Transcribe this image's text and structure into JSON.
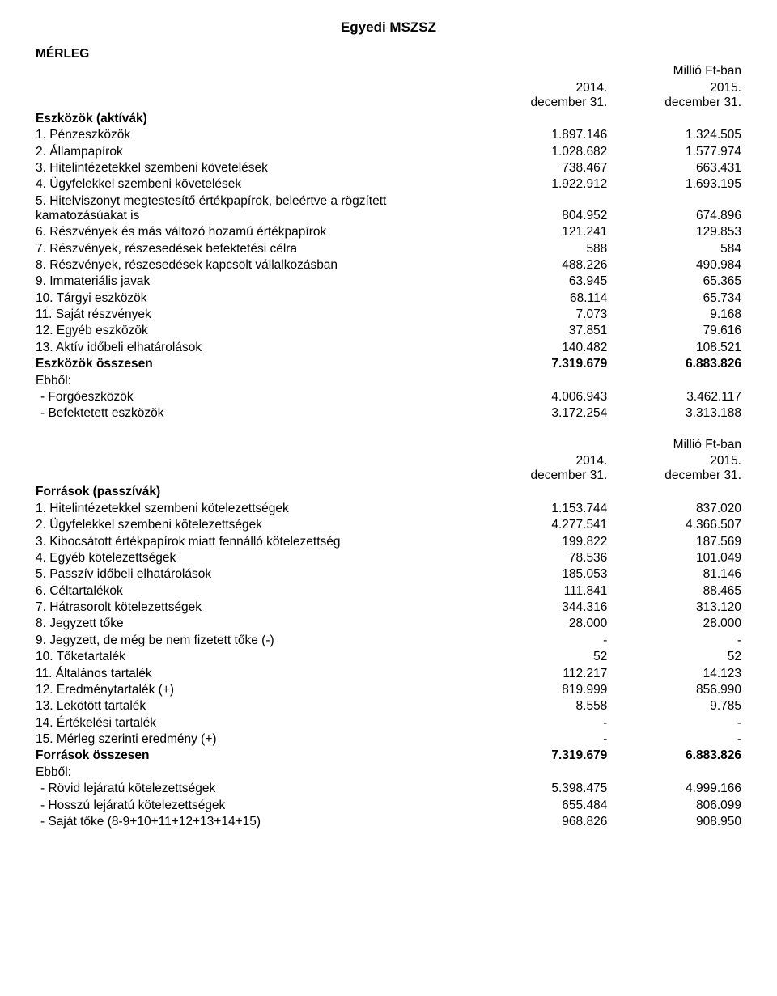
{
  "typography": {
    "font_family": "Arial, Helvetica, sans-serif",
    "base_size_pt": 11.5,
    "title_size_pt": 13,
    "color": "#000000",
    "background": "#ffffff"
  },
  "doc_title": "Egyedi MSZSZ",
  "unit_label": "Millió Ft-ban",
  "columns": {
    "col1": {
      "year": "2014.",
      "date": "december 31."
    },
    "col2": {
      "year": "2015.",
      "date": "december 31."
    }
  },
  "section1": {
    "heading": "MÉRLEG",
    "group_label": "Eszközök (aktívák)",
    "rows": [
      {
        "label": "1. Pénzeszközök",
        "v1": "1.897.146",
        "v2": "1.324.505"
      },
      {
        "label": "2. Állampapírok",
        "v1": "1.028.682",
        "v2": "1.577.974"
      },
      {
        "label": "3. Hitelintézetekkel szembeni követelések",
        "v1": "738.467",
        "v2": "663.431"
      },
      {
        "label": "4. Ügyfelekkel szembeni követelések",
        "v1": "1.922.912",
        "v2": "1.693.195"
      },
      {
        "label": "5. Hitelviszonyt megtestesítő értékpapírok, beleértve a rögzített kamatozásúakat is",
        "v1": "804.952",
        "v2": "674.896"
      },
      {
        "label": "6. Részvények és más változó hozamú értékpapírok",
        "v1": "121.241",
        "v2": "129.853"
      },
      {
        "label": "7. Részvények, részesedések befektetési célra",
        "v1": "588",
        "v2": "584"
      },
      {
        "label": "8. Részvények, részesedések kapcsolt vállalkozásban",
        "v1": "488.226",
        "v2": "490.984"
      },
      {
        "label": "9. Immateriális javak",
        "v1": "63.945",
        "v2": "65.365"
      },
      {
        "label": "10. Tárgyi eszközök",
        "v1": "68.114",
        "v2": "65.734"
      },
      {
        "label": "11. Saját részvények",
        "v1": "7.073",
        "v2": "9.168"
      },
      {
        "label": "12. Egyéb eszközök",
        "v1": "37.851",
        "v2": "79.616"
      },
      {
        "label": "13. Aktív időbeli elhatárolások",
        "v1": "140.482",
        "v2": "108.521"
      }
    ],
    "total": {
      "label": "Eszközök összesen",
      "v1": "7.319.679",
      "v2": "6.883.826"
    },
    "ebbol_label": "Ebből:",
    "sub": [
      {
        "label": "- Forgóeszközök",
        "v1": "4.006.943",
        "v2": "3.462.117"
      },
      {
        "label": "- Befektetett eszközök",
        "v1": "3.172.254",
        "v2": "3.313.188"
      }
    ]
  },
  "section2": {
    "group_label": "Források (passzívák)",
    "rows": [
      {
        "label": "1. Hitelintézetekkel szembeni kötelezettségek",
        "v1": "1.153.744",
        "v2": "837.020"
      },
      {
        "label": "2. Ügyfelekkel szembeni kötelezettségek",
        "v1": "4.277.541",
        "v2": "4.366.507"
      },
      {
        "label": "3. Kibocsátott értékpapírok miatt fennálló kötelezettség",
        "v1": "199.822",
        "v2": "187.569"
      },
      {
        "label": "4. Egyéb kötelezettségek",
        "v1": "78.536",
        "v2": "101.049"
      },
      {
        "label": "5. Passzív időbeli elhatárolások",
        "v1": "185.053",
        "v2": "81.146"
      },
      {
        "label": "6. Céltartalékok",
        "v1": "111.841",
        "v2": "88.465"
      },
      {
        "label": "7. Hátrasorolt kötelezettségek",
        "v1": "344.316",
        "v2": "313.120"
      },
      {
        "label": "8. Jegyzett tőke",
        "v1": "28.000",
        "v2": "28.000"
      },
      {
        "label": "9. Jegyzett, de még be nem fizetett tőke (-)",
        "v1": "-",
        "v2": "-"
      },
      {
        "label": "10. Tőketartalék",
        "v1": "52",
        "v2": "52"
      },
      {
        "label": "11. Általános tartalék",
        "v1": "112.217",
        "v2": "14.123"
      },
      {
        "label": "12. Eredménytartalék (+)",
        "v1": "819.999",
        "v2": "856.990"
      },
      {
        "label": "13. Lekötött tartalék",
        "v1": "8.558",
        "v2": "9.785"
      },
      {
        "label": "14. Értékelési tartalék",
        "v1": "-",
        "v2": "-"
      },
      {
        "label": "15. Mérleg szerinti eredmény (+)",
        "v1": "-",
        "v2": "-"
      }
    ],
    "total": {
      "label": "Források összesen",
      "v1": "7.319.679",
      "v2": "6.883.826"
    },
    "ebbol_label": "Ebből:",
    "sub": [
      {
        "label": "- Rövid lejáratú kötelezettségek",
        "v1": "5.398.475",
        "v2": "4.999.166"
      },
      {
        "label": "- Hosszú lejáratú kötelezettségek",
        "v1": "655.484",
        "v2": "806.099"
      },
      {
        "label": "- Saját tőke (8-9+10+11+12+13+14+15)",
        "v1": "968.826",
        "v2": "908.950"
      }
    ]
  }
}
